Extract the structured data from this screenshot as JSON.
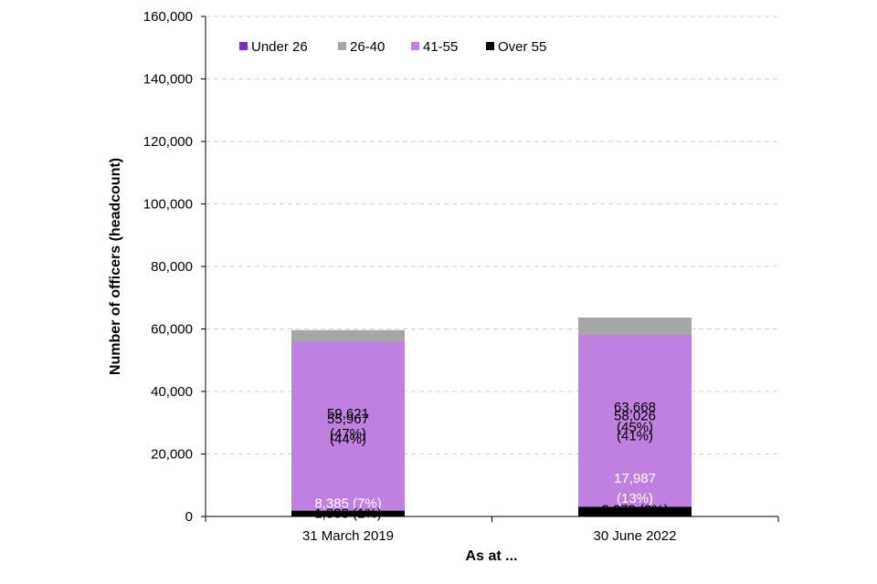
{
  "chart_data": {
    "type": "bar",
    "stacked": true,
    "title": "",
    "xlabel": "As at ...",
    "ylabel": "Number of officers (headcount)",
    "ylim": [
      0,
      160000
    ],
    "yticks": [
      0,
      20000,
      40000,
      60000,
      80000,
      100000,
      120000,
      140000,
      160000
    ],
    "ytick_labels": [
      "0",
      "20,000",
      "40,000",
      "60,000",
      "80,000",
      "100,000",
      "120,000",
      "140,000",
      "160,000"
    ],
    "grid": true,
    "legend_position": "top-left",
    "categories": [
      "31 March 2019",
      "30 June 2022"
    ],
    "series": [
      {
        "name": "Under 26",
        "color": "#7B2FBE",
        "label_color": "#ffffff",
        "values": [
          8385,
          17987
        ],
        "labels": [
          [
            "8,385 (7%)"
          ],
          [
            "17,987",
            "(13%)"
          ]
        ]
      },
      {
        "name": "26-40",
        "color": "#A6A6A6",
        "label_color": "#000000",
        "values": [
          59621,
          63668
        ],
        "labels": [
          [
            "59,621",
            "(47%)"
          ],
          [
            "63,668",
            "(45%)"
          ]
        ]
      },
      {
        "name": "41-55",
        "color": "#BF80E0",
        "label_color": "#000000",
        "values": [
          55967,
          58026
        ],
        "labels": [
          [
            "55,967",
            "(44%)"
          ],
          [
            "58,026",
            "(41%)"
          ]
        ]
      },
      {
        "name": "Over 55",
        "color": "#000000",
        "label_color": "#000000",
        "values": [
          1838,
          3078
        ],
        "labels": [
          [
            "1,838 (1%)"
          ],
          [
            "3,078 (2%)"
          ]
        ]
      }
    ]
  }
}
